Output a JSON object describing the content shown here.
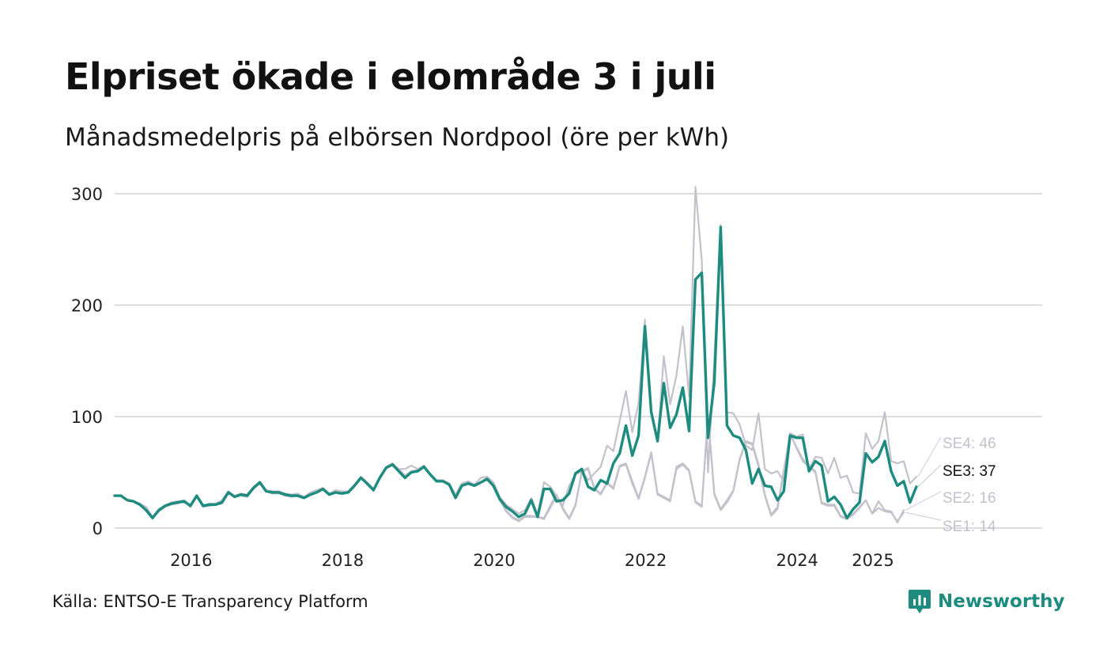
{
  "title": "Elpriset ökade i elområde 3 i juli",
  "subtitle": "Månadsmedelpris på elbörsen Nordpool (öre per kWh)",
  "source": "Källa: ENTSO-E Transparency Platform",
  "brand": {
    "name": "Newsworthy",
    "color": "#1d8c7e",
    "icon": "bar-chart-speech-bubble-icon"
  },
  "colors": {
    "highlight": "#1d8c7e",
    "context": "#c3c1cb",
    "grid": "#dddddd"
  },
  "chart_data": {
    "type": "line",
    "title": "Elpriset ökade i elområde 3 i juli",
    "subtitle": "Månadsmedelpris på elbörsen Nordpool (öre per kWh)",
    "xlabel": "",
    "ylabel": "",
    "xlim": [
      "2015-01",
      "2026-12"
    ],
    "ylim": [
      0,
      310
    ],
    "yticks": [
      "0",
      "100",
      "200",
      "300"
    ],
    "xticks": [
      {
        "label": "2016",
        "date": "2016-01"
      },
      {
        "label": "2018",
        "date": "2018-01"
      },
      {
        "label": "2020",
        "date": "2020-01"
      },
      {
        "label": "2022",
        "date": "2022-01"
      },
      {
        "label": "2024",
        "date": "2024-01"
      },
      {
        "label": "2025",
        "date": "2025-01"
      }
    ],
    "grid": true,
    "start": "2015-01",
    "series": [
      {
        "name": "SE1",
        "end_label": "SE1: 14",
        "highlight": false,
        "values": [
          29,
          29,
          25,
          24,
          21,
          15,
          9,
          15,
          19,
          21,
          22,
          24,
          19,
          28,
          19,
          20,
          21,
          22,
          31,
          28,
          29,
          28,
          35,
          40,
          33,
          31,
          31,
          29,
          28,
          29,
          27,
          30,
          32,
          35,
          30,
          32,
          31,
          32,
          39,
          45,
          39,
          34,
          46,
          54,
          57,
          53,
          47,
          51,
          52,
          56,
          48,
          42,
          42,
          39,
          28,
          38,
          40,
          38,
          41,
          45,
          37,
          25,
          15,
          9,
          6,
          10,
          10,
          10,
          8,
          18,
          29,
          17,
          8,
          20,
          50,
          53,
          35,
          30,
          40,
          35,
          55,
          57,
          40,
          26,
          45,
          67,
          30,
          27,
          24,
          53,
          57,
          51,
          23,
          19,
          101,
          30,
          16,
          23,
          33,
          61,
          77,
          75,
          55,
          29,
          11,
          17,
          50,
          85,
          72,
          60,
          55,
          50,
          22,
          20,
          20,
          10,
          8,
          12,
          18,
          25,
          13,
          18,
          15,
          14,
          6,
          14
        ]
      },
      {
        "name": "SE2",
        "end_label": "SE2: 16",
        "highlight": false,
        "values": [
          29,
          29,
          25,
          24,
          21,
          16,
          9,
          15,
          19,
          21,
          23,
          24,
          19,
          28,
          19,
          20,
          21,
          22,
          31,
          28,
          29,
          28,
          35,
          40,
          33,
          31,
          31,
          29,
          28,
          29,
          27,
          30,
          32,
          35,
          30,
          32,
          31,
          32,
          39,
          45,
          39,
          34,
          46,
          54,
          57,
          53,
          47,
          51,
          52,
          56,
          48,
          42,
          42,
          39,
          28,
          38,
          40,
          38,
          41,
          45,
          37,
          25,
          16,
          10,
          7,
          11,
          11,
          10,
          9,
          20,
          30,
          18,
          9,
          21,
          51,
          54,
          36,
          31,
          41,
          36,
          56,
          58,
          42,
          27,
          46,
          68,
          31,
          28,
          25,
          55,
          58,
          52,
          24,
          20,
          102,
          31,
          17,
          25,
          34,
          62,
          78,
          76,
          57,
          30,
          12,
          19,
          52,
          84,
          73,
          62,
          56,
          51,
          23,
          21,
          21,
          11,
          9,
          13,
          19,
          25,
          13,
          24,
          16,
          15,
          5,
          16
        ]
      },
      {
        "name": "SE3",
        "end_label": "SE3: 37",
        "highlight": true,
        "values": [
          29,
          29,
          25,
          24,
          21,
          16,
          9,
          16,
          20,
          22,
          23,
          24,
          20,
          29,
          20,
          21,
          21,
          23,
          32,
          28,
          30,
          29,
          36,
          41,
          33,
          32,
          32,
          30,
          29,
          29,
          27,
          30,
          32,
          35,
          30,
          32,
          31,
          32,
          38,
          45,
          40,
          34,
          45,
          54,
          57,
          51,
          45,
          50,
          51,
          55,
          48,
          42,
          42,
          39,
          27,
          38,
          40,
          38,
          41,
          44,
          38,
          26,
          19,
          15,
          10,
          13,
          25,
          10,
          35,
          35,
          24,
          25,
          31,
          49,
          53,
          37,
          34,
          43,
          40,
          58,
          67,
          92,
          65,
          83,
          181,
          104,
          78,
          130,
          90,
          102,
          126,
          87,
          223,
          229,
          81,
          131,
          270,
          92,
          83,
          81,
          70,
          40,
          53,
          38,
          37,
          25,
          33,
          83,
          81,
          81,
          51,
          60,
          56,
          24,
          28,
          21,
          9,
          17,
          23,
          67,
          59,
          64,
          78,
          51,
          38,
          42,
          23,
          37
        ]
      },
      {
        "name": "SE4",
        "end_label": "SE4: 46",
        "highlight": false,
        "values": [
          29,
          29,
          25,
          24,
          22,
          19,
          10,
          17,
          20,
          23,
          24,
          25,
          20,
          29,
          20,
          22,
          22,
          25,
          33,
          29,
          31,
          30,
          37,
          41,
          34,
          33,
          33,
          31,
          30,
          31,
          28,
          32,
          34,
          36,
          31,
          34,
          33,
          33,
          39,
          46,
          41,
          35,
          46,
          55,
          58,
          53,
          53,
          56,
          53,
          56,
          48,
          43,
          43,
          40,
          30,
          40,
          42,
          39,
          45,
          46,
          41,
          28,
          21,
          17,
          13,
          16,
          27,
          12,
          41,
          37,
          29,
          20,
          38,
          48,
          51,
          43,
          49,
          55,
          74,
          69,
          96,
          123,
          86,
          112,
          187,
          106,
          77,
          154,
          111,
          137,
          181,
          118,
          306,
          240,
          50,
          152,
          272,
          104,
          103,
          93,
          74,
          70,
          103,
          53,
          49,
          51,
          42,
          85,
          82,
          84,
          53,
          64,
          63,
          49,
          63,
          45,
          47,
          32,
          31,
          85,
          71,
          78,
          104,
          60,
          58,
          60,
          40,
          46
        ]
      }
    ]
  }
}
